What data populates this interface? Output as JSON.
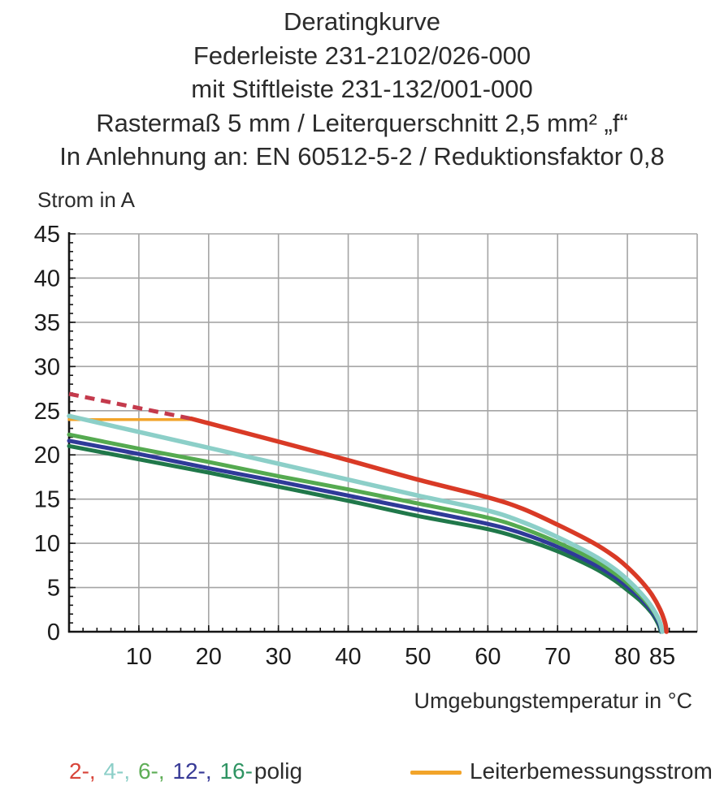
{
  "chart_data": {
    "type": "line",
    "title_lines": [
      "Deratingkurve",
      "Federleiste 231-2102/026-000",
      "mit Stiftleiste 231-132/001-000",
      "Rastermaß 5 mm / Leiterquerschnitt 2,5 mm² „f“",
      "In Anlehnung an: EN 60512-5-2 / Reduktionsfaktor 0,8"
    ],
    "ylabel": "Strom in A",
    "xlabel": "Umgebungstemperatur in °C",
    "xlim": [
      0,
      90
    ],
    "ylim": [
      0,
      45
    ],
    "x_labeled_ticks": [
      10,
      20,
      30,
      40,
      50,
      60,
      70,
      80,
      85
    ],
    "y_labeled_ticks": [
      0,
      5,
      10,
      15,
      20,
      25,
      30,
      35,
      40,
      45
    ],
    "x_grid_step": 10,
    "y_grid_step": 5,
    "x_minor_step": 2,
    "y_minor_step": 1,
    "grid_color": "#a5a5a5",
    "axis_color": "#151515",
    "tick_label_color": "#1b1b1b",
    "series": [
      {
        "name": "Leiterbemessungsstrom",
        "color": "#f2a42a",
        "width": 3.5,
        "points": [
          [
            0,
            24
          ],
          [
            18.3,
            24
          ]
        ]
      },
      {
        "name": "16-polig",
        "color": "#20784a",
        "width": 5,
        "points": [
          [
            0,
            21.0
          ],
          [
            10,
            19.5
          ],
          [
            20,
            18.0
          ],
          [
            30,
            16.4
          ],
          [
            40,
            14.8
          ],
          [
            50,
            13.1
          ],
          [
            60,
            11.6
          ],
          [
            65,
            10.5
          ],
          [
            70,
            9.1
          ],
          [
            75,
            7.3
          ],
          [
            78,
            5.9
          ],
          [
            80,
            4.7
          ],
          [
            82,
            3.4
          ],
          [
            83.5,
            2.1
          ],
          [
            84.4,
            0.9
          ],
          [
            84.8,
            0
          ]
        ]
      },
      {
        "name": "12-polig",
        "color": "#2f3a99",
        "width": 5,
        "points": [
          [
            0,
            21.6
          ],
          [
            10,
            20.1
          ],
          [
            20,
            18.5
          ],
          [
            30,
            17.0
          ],
          [
            40,
            15.4
          ],
          [
            50,
            13.8
          ],
          [
            60,
            12.2
          ],
          [
            65,
            11.1
          ],
          [
            70,
            9.6
          ],
          [
            75,
            7.7
          ],
          [
            78,
            6.3
          ],
          [
            80,
            5.1
          ],
          [
            82,
            3.7
          ],
          [
            83.5,
            2.3
          ],
          [
            84.5,
            1.0
          ],
          [
            84.9,
            0
          ]
        ]
      },
      {
        "name": "6-polig",
        "color": "#55aa50",
        "width": 5,
        "points": [
          [
            0,
            22.3
          ],
          [
            10,
            20.7
          ],
          [
            20,
            19.2
          ],
          [
            30,
            17.6
          ],
          [
            40,
            16.1
          ],
          [
            50,
            14.5
          ],
          [
            60,
            12.9
          ],
          [
            65,
            11.7
          ],
          [
            70,
            10.1
          ],
          [
            75,
            8.2
          ],
          [
            78,
            6.7
          ],
          [
            80,
            5.5
          ],
          [
            82,
            4.0
          ],
          [
            83.5,
            2.6
          ],
          [
            84.6,
            1.1
          ],
          [
            85,
            0
          ]
        ]
      },
      {
        "name": "4-polig",
        "color": "#8ccfc8",
        "width": 5.5,
        "points": [
          [
            0,
            24.4
          ],
          [
            10,
            22.6
          ],
          [
            20,
            20.8
          ],
          [
            30,
            19.0
          ],
          [
            40,
            17.2
          ],
          [
            50,
            15.4
          ],
          [
            60,
            13.7
          ],
          [
            65,
            12.4
          ],
          [
            70,
            10.7
          ],
          [
            75,
            8.7
          ],
          [
            78,
            7.2
          ],
          [
            80,
            5.9
          ],
          [
            82,
            4.3
          ],
          [
            83.5,
            2.8
          ],
          [
            84.6,
            1.2
          ],
          [
            85,
            0
          ]
        ]
      },
      {
        "name": "2-polig-projection",
        "color": "#c43a4c",
        "width": 5,
        "dash": "12 8",
        "points": [
          [
            0,
            26.9
          ],
          [
            17.5,
            24.1
          ]
        ]
      },
      {
        "name": "2-polig",
        "color": "#d93a26",
        "width": 5.5,
        "points": [
          [
            17.5,
            24.1
          ],
          [
            30,
            21.5
          ],
          [
            40,
            19.4
          ],
          [
            50,
            17.2
          ],
          [
            60,
            15.2
          ],
          [
            65,
            13.9
          ],
          [
            70,
            12.1
          ],
          [
            75,
            10.1
          ],
          [
            78,
            8.6
          ],
          [
            80,
            7.3
          ],
          [
            82,
            5.7
          ],
          [
            83.5,
            4.2
          ],
          [
            84.7,
            2.5
          ],
          [
            85.4,
            1.0
          ],
          [
            85.6,
            0
          ]
        ]
      }
    ]
  },
  "legend": {
    "poles": {
      "items": [
        {
          "label": "2-",
          "color": "#d8453a"
        },
        {
          "label": "4-",
          "color": "#8ccfc8"
        },
        {
          "label": "6-",
          "color": "#5fae57"
        },
        {
          "label": "12-",
          "color": "#373a96"
        },
        {
          "label": "16-",
          "color": "#2f9463"
        }
      ],
      "separator": ", ",
      "suffix": "polig",
      "suffix_color": "#2b2b2b"
    },
    "rated": {
      "label": "Leiterbemessungsstrom",
      "color": "#f2a42a"
    }
  }
}
